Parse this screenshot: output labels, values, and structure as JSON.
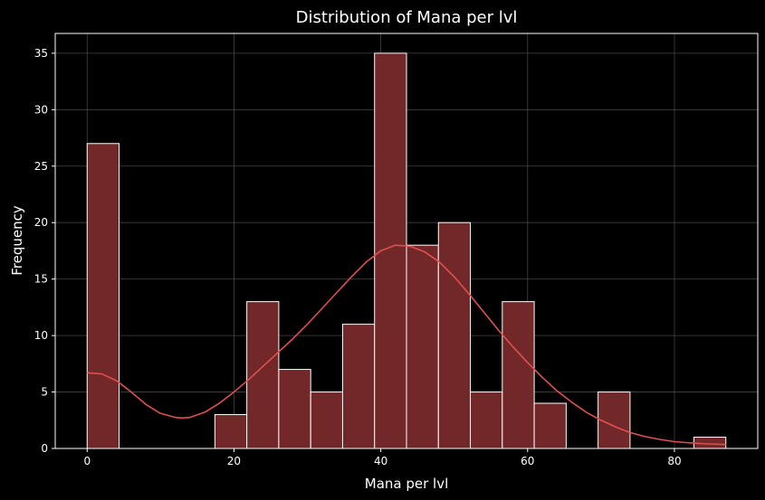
{
  "chart_data": {
    "type": "bar",
    "title": "Distribution of Mana per lvl",
    "xlabel": "Mana per lvl",
    "ylabel": "Frequency",
    "xlim": [
      -4.35,
      91.35
    ],
    "ylim": [
      0,
      36.75
    ],
    "xticks": [
      0,
      20,
      40,
      60,
      80
    ],
    "yticks": [
      0,
      5,
      10,
      15,
      20,
      25,
      30,
      35
    ],
    "grid": true,
    "bin_width": 4.35,
    "bins": [
      {
        "start": 0.0,
        "end": 4.35,
        "count": 27
      },
      {
        "start": 4.35,
        "end": 8.7,
        "count": 0
      },
      {
        "start": 8.7,
        "end": 13.05,
        "count": 0
      },
      {
        "start": 13.05,
        "end": 17.4,
        "count": 0
      },
      {
        "start": 17.4,
        "end": 21.75,
        "count": 3
      },
      {
        "start": 21.75,
        "end": 26.1,
        "count": 13
      },
      {
        "start": 26.1,
        "end": 30.45,
        "count": 7
      },
      {
        "start": 30.45,
        "end": 34.8,
        "count": 5
      },
      {
        "start": 34.8,
        "end": 39.15,
        "count": 11
      },
      {
        "start": 39.15,
        "end": 43.5,
        "count": 35
      },
      {
        "start": 43.5,
        "end": 47.85,
        "count": 18
      },
      {
        "start": 47.85,
        "end": 52.2,
        "count": 20
      },
      {
        "start": 52.2,
        "end": 56.55,
        "count": 5
      },
      {
        "start": 56.55,
        "end": 60.9,
        "count": 13
      },
      {
        "start": 60.9,
        "end": 65.25,
        "count": 4
      },
      {
        "start": 65.25,
        "end": 69.6,
        "count": 0
      },
      {
        "start": 69.6,
        "end": 73.95,
        "count": 5
      },
      {
        "start": 73.95,
        "end": 78.3,
        "count": 0
      },
      {
        "start": 78.3,
        "end": 82.65,
        "count": 0
      },
      {
        "start": 82.65,
        "end": 87.0,
        "count": 1
      }
    ],
    "kde": {
      "x": [
        0,
        2,
        4,
        6,
        8,
        10,
        12,
        13,
        14,
        16,
        18,
        20,
        22,
        24,
        26,
        28,
        30,
        32,
        34,
        36,
        38,
        40,
        42,
        44,
        46,
        48,
        50,
        52,
        54,
        56,
        58,
        60,
        62,
        64,
        66,
        68,
        70,
        72,
        74,
        76,
        78,
        80,
        82,
        84,
        87
      ],
      "y": [
        6.7,
        6.6,
        6.0,
        5.0,
        3.9,
        3.1,
        2.75,
        2.7,
        2.75,
        3.2,
        4.0,
        5.0,
        6.1,
        7.3,
        8.5,
        9.7,
        11.0,
        12.4,
        13.8,
        15.2,
        16.5,
        17.5,
        18.0,
        17.9,
        17.4,
        16.5,
        15.2,
        13.7,
        12.1,
        10.5,
        9.0,
        7.6,
        6.3,
        5.1,
        4.1,
        3.2,
        2.5,
        1.9,
        1.4,
        1.05,
        0.8,
        0.6,
        0.5,
        0.42,
        0.35
      ]
    },
    "colors": {
      "background": "#000000",
      "bar_fill": "#722828",
      "bar_edge": "#ffffff",
      "kde_line": "#e05050",
      "grid": "#555555",
      "axes": "#ffffff",
      "text": "#ffffff"
    }
  }
}
